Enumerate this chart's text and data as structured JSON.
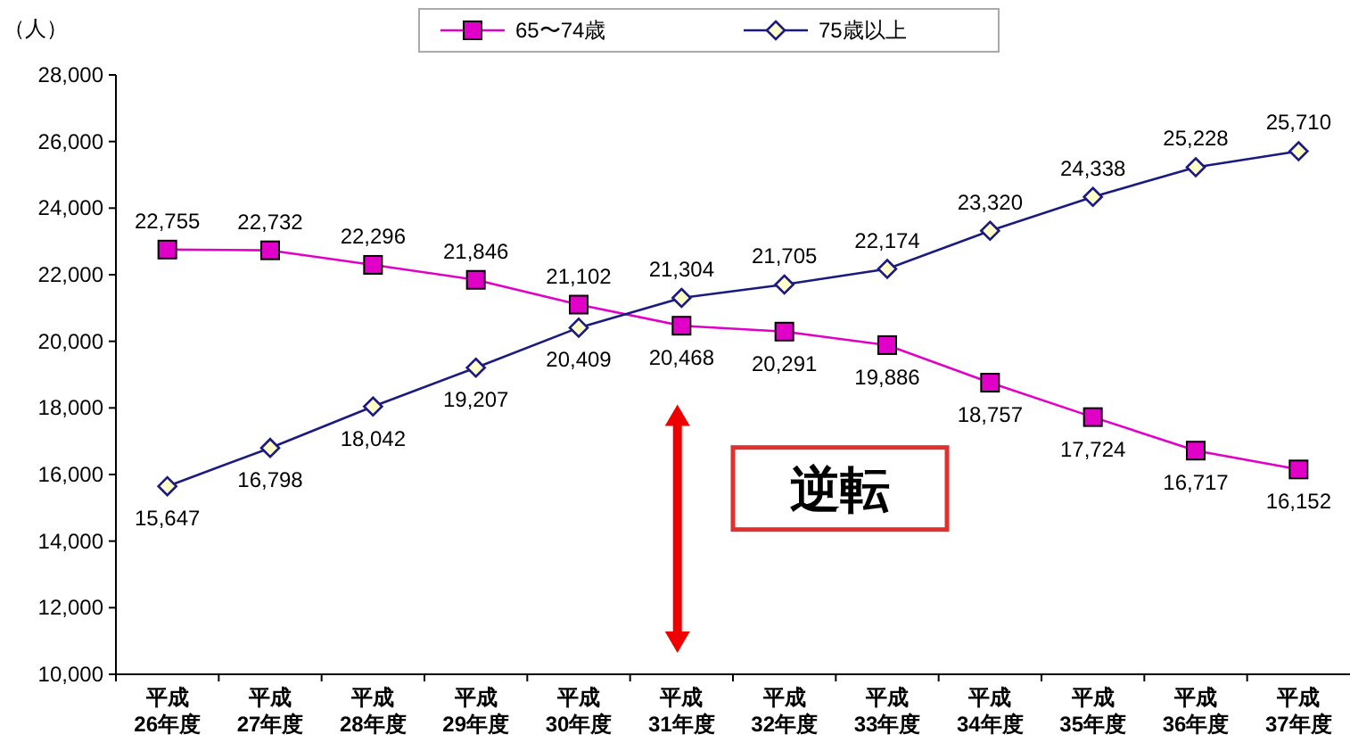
{
  "chart_data": {
    "type": "line",
    "ylabel": "（人）",
    "categories": [
      "平成\n26年度",
      "平成\n27年度",
      "平成\n28年度",
      "平成\n29年度",
      "平成\n30年度",
      "平成\n31年度",
      "平成\n32年度",
      "平成\n33年度",
      "平成\n34年度",
      "平成\n35年度",
      "平成\n36年度",
      "平成\n37年度"
    ],
    "series": [
      {
        "name": "65〜74歳",
        "color": "#e000c8",
        "marker": "square",
        "values": [
          22755,
          22732,
          22296,
          21846,
          21102,
          20468,
          20291,
          19886,
          18757,
          17724,
          16717,
          16152
        ],
        "value_labels": [
          "22,755",
          "22,732",
          "22,296",
          "21,846",
          "21,102",
          "20,468",
          "20,291",
          "19,886",
          "18,757",
          "17,724",
          "16,717",
          "16,152"
        ]
      },
      {
        "name": "75歳以上",
        "color": "#1a1a80",
        "marker": "diamond",
        "values": [
          15647,
          16798,
          18042,
          19207,
          20409,
          21304,
          21705,
          22174,
          23320,
          24338,
          25228,
          25710
        ],
        "value_labels": [
          "15,647",
          "16,798",
          "18,042",
          "19,207",
          "20,409",
          "21,304",
          "21,705",
          "22,174",
          "23,320",
          "24,338",
          "25,228",
          "25,710"
        ]
      }
    ],
    "ylim": [
      10000,
      28000
    ],
    "yticks": [
      {
        "value": 10000,
        "label": "10,000"
      },
      {
        "value": 12000,
        "label": "12,000"
      },
      {
        "value": 14000,
        "label": "14,000"
      },
      {
        "value": 16000,
        "label": "16,000"
      },
      {
        "value": 18000,
        "label": "18,000"
      },
      {
        "value": 20000,
        "label": "20,000"
      },
      {
        "value": 22000,
        "label": "22,000"
      },
      {
        "value": 24000,
        "label": "24,000"
      },
      {
        "value": 26000,
        "label": "26,000"
      },
      {
        "value": 28000,
        "label": "28,000"
      }
    ],
    "grid": false,
    "legend": "top",
    "annotations": [
      "逆転"
    ]
  }
}
